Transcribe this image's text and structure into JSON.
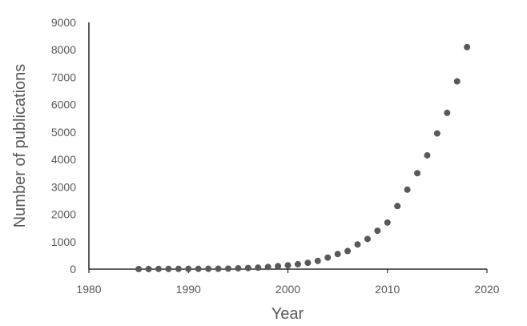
{
  "chart_data": {
    "type": "scatter",
    "title": "",
    "xlabel": "Year",
    "ylabel": "Number of publications",
    "xlim": [
      1980,
      2020
    ],
    "ylim": [
      0,
      9000
    ],
    "x_ticks": [
      "1980",
      "1990",
      "2000",
      "2010",
      "2020"
    ],
    "y_ticks": [
      "0",
      "1000",
      "2000",
      "3000",
      "4000",
      "5000",
      "6000",
      "7000",
      "8000",
      "9000"
    ],
    "grid": false,
    "legend": "none",
    "marker_color": "#595959",
    "series": [
      {
        "x": [
          1985,
          1986,
          1987,
          1988,
          1989,
          1990,
          1991,
          1992,
          1993,
          1994,
          1995,
          1996,
          1997,
          1998,
          1999,
          2000,
          2001,
          2002,
          2003,
          2004,
          2005,
          2006,
          2007,
          2008,
          2009,
          2010,
          2011,
          2012,
          2013,
          2014,
          2015,
          2016,
          2017,
          2018
        ],
        "y": [
          5,
          5,
          8,
          8,
          10,
          10,
          12,
          12,
          15,
          20,
          30,
          40,
          55,
          80,
          110,
          140,
          180,
          230,
          300,
          420,
          550,
          660,
          900,
          1100,
          1400,
          1700,
          2300,
          2900,
          3500,
          4150,
          4950,
          5700,
          6850,
          8100
        ]
      }
    ]
  }
}
